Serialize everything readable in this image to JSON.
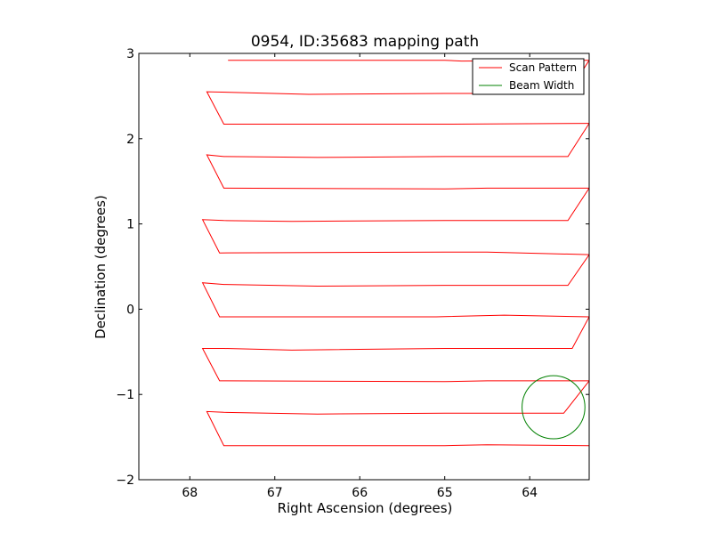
{
  "chart_data": {
    "type": "line",
    "title": "0954, ID:35683 mapping path",
    "xlabel": "Right Ascension (degrees)",
    "ylabel": "Declination (degrees)",
    "xlim": [
      68.6,
      63.3
    ],
    "ylim": [
      -2,
      3
    ],
    "x_inverted": true,
    "xticks": [
      68,
      67,
      66,
      65,
      64
    ],
    "xtick_labels": [
      "68",
      "67",
      "66",
      "65",
      "64"
    ],
    "yticks": [
      -2,
      -1,
      0,
      1,
      2,
      3
    ],
    "ytick_labels": [
      "−2",
      "−1",
      "0",
      "1",
      "2",
      "3"
    ],
    "grid": false,
    "legend_position": "top-right",
    "legend": [
      "Scan Pattern",
      "Beam Width"
    ],
    "series": [
      {
        "name": "Scan Pattern",
        "color": "#ff0000",
        "points": [
          [
            63.3,
            -1.6
          ],
          [
            64.5,
            -1.59
          ],
          [
            65.0,
            -1.6
          ],
          [
            67.6,
            -1.6
          ],
          [
            67.8,
            -1.2
          ],
          [
            67.6,
            -1.21
          ],
          [
            66.5,
            -1.23
          ],
          [
            65.0,
            -1.22
          ],
          [
            63.6,
            -1.22
          ],
          [
            63.3,
            -0.84
          ],
          [
            64.5,
            -0.84
          ],
          [
            65.0,
            -0.85
          ],
          [
            67.65,
            -0.84
          ],
          [
            67.85,
            -0.46
          ],
          [
            67.6,
            -0.46
          ],
          [
            66.8,
            -0.48
          ],
          [
            65.0,
            -0.46
          ],
          [
            63.5,
            -0.46
          ],
          [
            63.3,
            -0.09
          ],
          [
            64.3,
            -0.07
          ],
          [
            65.1,
            -0.09
          ],
          [
            67.65,
            -0.09
          ],
          [
            67.85,
            0.31
          ],
          [
            67.6,
            0.29
          ],
          [
            66.5,
            0.27
          ],
          [
            65.0,
            0.28
          ],
          [
            63.55,
            0.28
          ],
          [
            63.3,
            0.64
          ],
          [
            64.5,
            0.67
          ],
          [
            65.0,
            0.67
          ],
          [
            67.65,
            0.66
          ],
          [
            67.85,
            1.05
          ],
          [
            67.6,
            1.04
          ],
          [
            66.8,
            1.03
          ],
          [
            65.0,
            1.04
          ],
          [
            63.55,
            1.04
          ],
          [
            63.3,
            1.42
          ],
          [
            64.5,
            1.42
          ],
          [
            65.0,
            1.41
          ],
          [
            67.6,
            1.42
          ],
          [
            67.8,
            1.81
          ],
          [
            67.6,
            1.79
          ],
          [
            66.5,
            1.78
          ],
          [
            65.0,
            1.79
          ],
          [
            63.55,
            1.79
          ],
          [
            63.3,
            2.18
          ],
          [
            65.0,
            2.17
          ],
          [
            67.6,
            2.17
          ],
          [
            67.8,
            2.55
          ],
          [
            66.6,
            2.52
          ],
          [
            65.0,
            2.53
          ],
          [
            63.55,
            2.53
          ],
          [
            63.3,
            2.92
          ],
          [
            64.8,
            2.91
          ],
          [
            65.0,
            2.92
          ],
          [
            67.55,
            2.92
          ]
        ]
      },
      {
        "name": "Beam Width",
        "color": "#008000",
        "circle": {
          "center": [
            63.72,
            -1.15
          ],
          "radius": 0.37
        }
      }
    ]
  }
}
